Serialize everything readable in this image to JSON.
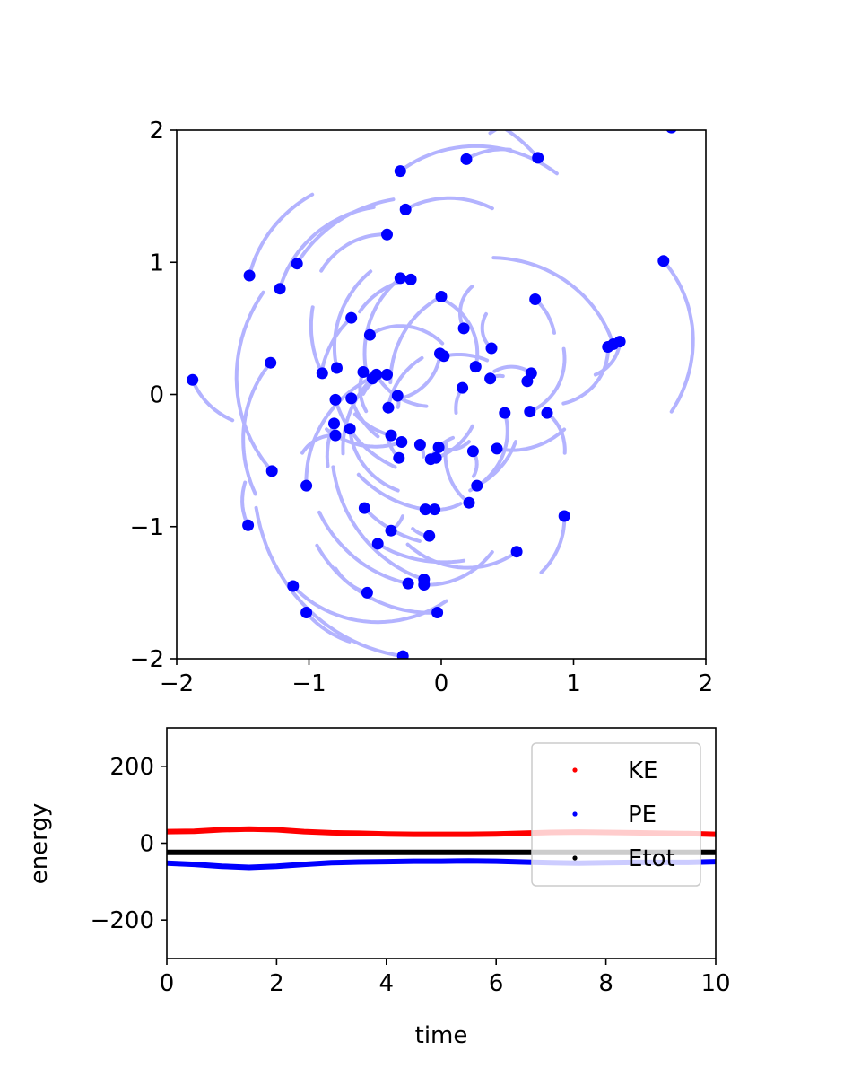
{
  "chart_data": [
    {
      "type": "scatter",
      "title": "",
      "xlabel": "",
      "ylabel": "",
      "xlim": [
        -2,
        2
      ],
      "ylim": [
        -2,
        2
      ],
      "xticks": [
        -2,
        -1,
        0,
        1,
        2
      ],
      "yticks": [
        -2,
        -1,
        0,
        1,
        2
      ],
      "xtick_labels": [
        "−2",
        "−1",
        "0",
        "1",
        "2"
      ],
      "ytick_labels": [
        "−2",
        "−1",
        "0",
        "1",
        "2"
      ],
      "grid": false,
      "colors": {
        "point": "#0000ff",
        "trail": "#b3b3ff"
      },
      "points": [
        [
          -1.88,
          0.11
        ],
        [
          -1.45,
          0.9
        ],
        [
          -1.22,
          0.8
        ],
        [
          -1.09,
          0.99
        ],
        [
          -1.29,
          0.24
        ],
        [
          -0.9,
          0.16
        ],
        [
          -0.79,
          0.2
        ],
        [
          -0.8,
          -0.04
        ],
        [
          -0.68,
          0.58
        ],
        [
          -0.54,
          0.45
        ],
        [
          -0.68,
          -0.03
        ],
        [
          -0.59,
          0.17
        ],
        [
          -0.52,
          0.12
        ],
        [
          -0.49,
          0.15
        ],
        [
          -0.41,
          0.15
        ],
        [
          -0.41,
          1.21
        ],
        [
          -0.31,
          1.69
        ],
        [
          -0.27,
          1.4
        ],
        [
          -0.31,
          0.88
        ],
        [
          -0.23,
          0.87
        ],
        [
          0.19,
          1.78
        ],
        [
          0.73,
          1.79
        ],
        [
          0.0,
          0.74
        ],
        [
          0.71,
          0.72
        ],
        [
          0.17,
          0.5
        ],
        [
          -0.81,
          -0.22
        ],
        [
          -0.8,
          -0.31
        ],
        [
          -0.69,
          -0.26
        ],
        [
          -0.4,
          -0.1
        ],
        [
          -0.33,
          -0.01
        ],
        [
          -0.38,
          -0.31
        ],
        [
          -0.3,
          -0.36
        ],
        [
          -0.16,
          -0.38
        ],
        [
          -0.01,
          0.31
        ],
        [
          0.02,
          0.29
        ],
        [
          0.26,
          0.21
        ],
        [
          0.38,
          0.35
        ],
        [
          0.37,
          0.12
        ],
        [
          0.16,
          0.05
        ],
        [
          0.65,
          0.1
        ],
        [
          0.68,
          0.16
        ],
        [
          0.48,
          -0.14
        ],
        [
          0.67,
          -0.13
        ],
        [
          0.8,
          -0.14
        ],
        [
          0.42,
          -0.41
        ],
        [
          0.24,
          -0.43
        ],
        [
          -0.02,
          -0.4
        ],
        [
          -0.08,
          -0.49
        ],
        [
          -0.04,
          -0.48
        ],
        [
          -0.32,
          -0.48
        ],
        [
          -1.28,
          -0.58
        ],
        [
          -1.02,
          -0.69
        ],
        [
          -0.58,
          -0.86
        ],
        [
          -0.38,
          -1.03
        ],
        [
          -0.48,
          -1.13
        ],
        [
          0.27,
          -0.69
        ],
        [
          0.21,
          -0.82
        ],
        [
          -0.05,
          -0.87
        ],
        [
          -0.12,
          -0.87
        ],
        [
          -0.09,
          -1.07
        ],
        [
          -1.46,
          -0.99
        ],
        [
          -1.12,
          -1.45
        ],
        [
          -1.02,
          -1.65
        ],
        [
          -0.56,
          -1.5
        ],
        [
          -0.25,
          -1.43
        ],
        [
          -0.13,
          -1.4
        ],
        [
          -0.13,
          -1.44
        ],
        [
          -0.03,
          -1.65
        ],
        [
          -0.29,
          -1.98
        ],
        [
          0.57,
          -1.19
        ],
        [
          0.93,
          -0.92
        ],
        [
          1.26,
          0.36
        ],
        [
          1.3,
          0.38
        ],
        [
          1.35,
          0.4
        ],
        [
          1.68,
          1.01
        ],
        [
          1.74,
          2.02
        ]
      ]
    },
    {
      "type": "line",
      "title": "",
      "xlabel": "time",
      "ylabel": "energy",
      "xlim": [
        0,
        10
      ],
      "ylim": [
        -300,
        300
      ],
      "xticks": [
        0,
        2,
        4,
        6,
        8,
        10
      ],
      "yticks": [
        -200,
        0,
        200
      ],
      "xtick_labels": [
        "0",
        "2",
        "4",
        "6",
        "8",
        "10"
      ],
      "ytick_labels": [
        "−200",
        "0",
        "200"
      ],
      "grid": false,
      "legend_position": "top-right",
      "x": [
        0,
        0.5,
        1,
        1.5,
        2,
        2.5,
        3,
        3.5,
        4,
        4.5,
        5,
        5.5,
        6,
        6.5,
        7,
        7.5,
        8,
        8.5,
        9,
        9.5,
        10
      ],
      "series": [
        {
          "name": "KE",
          "color": "#ff0000",
          "values": [
            30,
            31,
            35,
            37,
            35,
            30,
            27,
            26,
            24,
            23,
            23,
            23,
            24,
            26,
            28,
            29,
            28,
            27,
            26,
            25,
            23
          ]
        },
        {
          "name": "PE",
          "color": "#0000ff",
          "values": [
            -52,
            -55,
            -60,
            -63,
            -60,
            -55,
            -51,
            -49,
            -48,
            -47,
            -47,
            -46,
            -47,
            -49,
            -51,
            -52,
            -51,
            -50,
            -50,
            -50,
            -48
          ]
        },
        {
          "name": "Etot",
          "color": "#000000",
          "values": [
            -24,
            -24,
            -24,
            -24,
            -24,
            -24,
            -24,
            -24,
            -24,
            -24,
            -24,
            -24,
            -24,
            -24,
            -24,
            -24,
            -24,
            -24,
            -24,
            -24,
            -24
          ]
        }
      ]
    }
  ]
}
